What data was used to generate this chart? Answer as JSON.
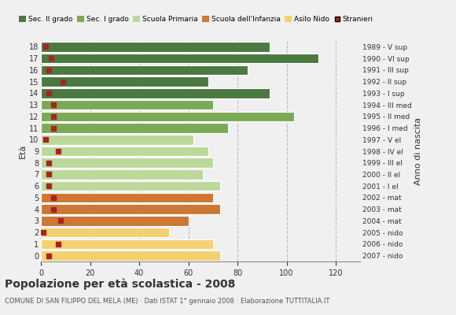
{
  "ages_top_to_bottom": [
    18,
    17,
    16,
    15,
    14,
    13,
    12,
    11,
    10,
    9,
    8,
    7,
    6,
    5,
    4,
    3,
    2,
    1,
    0
  ],
  "values": [
    93,
    113,
    84,
    68,
    93,
    70,
    103,
    76,
    62,
    68,
    70,
    66,
    73,
    70,
    73,
    60,
    52,
    70,
    73
  ],
  "stranieri": [
    2,
    4,
    3,
    9,
    3,
    5,
    5,
    5,
    2,
    7,
    3,
    3,
    3,
    5,
    5,
    8,
    1,
    7,
    3
  ],
  "right_labels": [
    "1989 - V sup",
    "1990 - VI sup",
    "1991 - III sup",
    "1992 - II sup",
    "1993 - I sup",
    "1994 - III med",
    "1995 - II med",
    "1996 - I med",
    "1997 - V el",
    "1998 - IV el",
    "1999 - III el",
    "2000 - II el",
    "2001 - I el",
    "2002 - mat",
    "2003 - mat",
    "2004 - mat",
    "2005 - nido",
    "2006 - nido",
    "2007 - nido"
  ],
  "bar_colors": [
    "#4a7a40",
    "#4a7a40",
    "#4a7a40",
    "#4a7a40",
    "#4a7a40",
    "#7aaa55",
    "#7aaa55",
    "#7aaa55",
    "#bcd89a",
    "#bcd89a",
    "#bcd89a",
    "#bcd89a",
    "#bcd89a",
    "#cc7733",
    "#cc7733",
    "#cc7733",
    "#f5d070",
    "#f5d070",
    "#f5d070"
  ],
  "legend_labels": [
    "Sec. II grado",
    "Sec. I grado",
    "Scuola Primaria",
    "Scuola dell'Infanzia",
    "Asilo Nido",
    "Stranieri"
  ],
  "legend_colors": [
    "#4a7a40",
    "#7aaa55",
    "#bcd89a",
    "#cc7733",
    "#f5d070",
    "#aa2222"
  ],
  "title": "Popolazione per età scolastica - 2008",
  "subtitle": "COMUNE DI SAN FILIPPO DEL MELA (ME) · Dati ISTAT 1° gennaio 2008 · Elaborazione TUTTITALIA.IT",
  "ylabel_eta": "Età",
  "ylabel_anno": "Anno di nascita",
  "stranieri_color": "#aa2222",
  "bg_color": "#f0f0f0",
  "grid_color": "#999999",
  "xlim": [
    0,
    130
  ],
  "xticks": [
    0,
    20,
    40,
    60,
    80,
    100,
    120
  ]
}
